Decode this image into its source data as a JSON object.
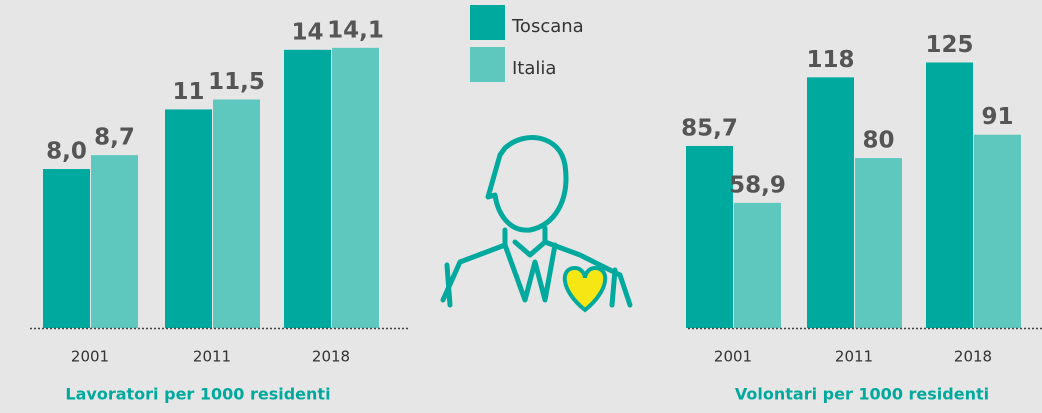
{
  "chart_data": [
    {
      "type": "bar",
      "title": "Lavoratori per 1000 residenti",
      "categories": [
        "2001",
        "2011",
        "2018"
      ],
      "series": [
        {
          "name": "Toscana",
          "color": "#00a99d",
          "values": [
            8.0,
            11,
            14
          ],
          "value_labels": [
            "8,0",
            "11",
            "14"
          ]
        },
        {
          "name": "Italia",
          "color": "#5ec8bf",
          "values": [
            8.7,
            11.5,
            14.1
          ],
          "value_labels": [
            "8,7",
            "11,5",
            "14,1"
          ]
        }
      ],
      "ylim": [
        0,
        15.5
      ]
    },
    {
      "type": "bar",
      "title": "Volontari per 1000 residenti",
      "categories": [
        "2001",
        "2011",
        "2018"
      ],
      "series": [
        {
          "color": "#00a99d",
          "values": [
            85.7,
            118,
            125
          ],
          "value_labels": [
            "85,7",
            "118",
            "125"
          ]
        },
        {
          "color": "#5ec8bf",
          "values": [
            58.9,
            80,
            91
          ],
          "value_labels": [
            "58,9",
            "80",
            "91"
          ]
        }
      ],
      "ylim": [
        0,
        145
      ]
    }
  ]
}
